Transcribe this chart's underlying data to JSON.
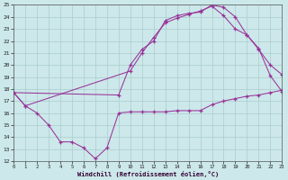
{
  "xlabel": "Windchill (Refroidissement éolien,°C)",
  "xlim": [
    0,
    23
  ],
  "ylim": [
    12,
    25
  ],
  "xticks": [
    0,
    1,
    2,
    3,
    4,
    5,
    6,
    7,
    8,
    9,
    10,
    11,
    12,
    13,
    14,
    15,
    16,
    17,
    18,
    19,
    20,
    21,
    22,
    23
  ],
  "yticks": [
    12,
    13,
    14,
    15,
    16,
    17,
    18,
    19,
    20,
    21,
    22,
    23,
    24,
    25
  ],
  "bg_color": "#cce8ea",
  "line_color": "#993399",
  "grid_color": "#aacccc",
  "line1_x": [
    0,
    1,
    2,
    3,
    4,
    5,
    6,
    7,
    8,
    9,
    10,
    11,
    12,
    13,
    14,
    15,
    16,
    17,
    18,
    19,
    20,
    21,
    22,
    23
  ],
  "line1_y": [
    17.7,
    16.6,
    16.0,
    15.0,
    13.6,
    13.6,
    13.1,
    12.2,
    13.1,
    16.0,
    16.1,
    16.1,
    16.1,
    16.1,
    16.2,
    16.2,
    16.2,
    16.7,
    17.0,
    17.2,
    17.4,
    17.5,
    17.7,
    17.9
  ],
  "line2_x": [
    0,
    1,
    10,
    11,
    12,
    13,
    14,
    15,
    16,
    17,
    18,
    19,
    20,
    21,
    22,
    23
  ],
  "line2_y": [
    17.7,
    16.6,
    19.5,
    21.0,
    22.3,
    23.5,
    23.9,
    24.2,
    24.5,
    24.9,
    24.1,
    23.0,
    22.5,
    21.4,
    19.1,
    17.8
  ],
  "line3_x": [
    0,
    9,
    10,
    11,
    12,
    13,
    14,
    15,
    16,
    17,
    18,
    19,
    20,
    21,
    22,
    23
  ],
  "line3_y": [
    17.7,
    17.5,
    20.0,
    21.3,
    22.0,
    23.7,
    24.1,
    24.3,
    24.4,
    25.0,
    24.8,
    24.0,
    22.5,
    21.3,
    20.0,
    19.2
  ]
}
